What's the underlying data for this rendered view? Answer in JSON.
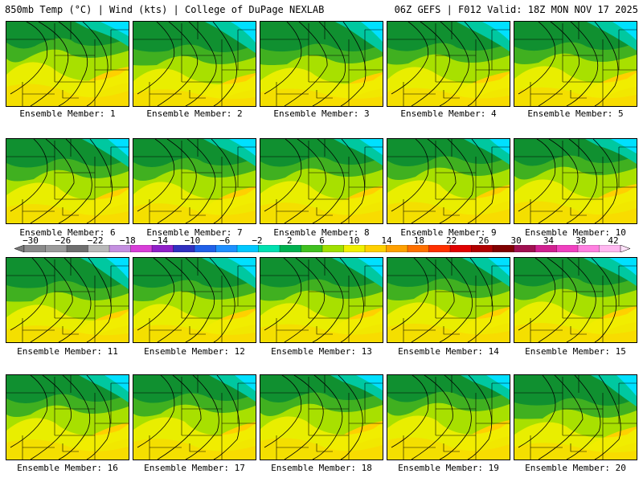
{
  "header": {
    "left_title": "850mb Temp (°C) | Wind (kts) | College of DuPage NEXLAB",
    "right_title": "06Z GEFS | F012 Valid: 18Z MON NOV 17 2025"
  },
  "members": [
    {
      "label": "Ensemble Member: 1"
    },
    {
      "label": "Ensemble Member: 2"
    },
    {
      "label": "Ensemble Member: 3"
    },
    {
      "label": "Ensemble Member: 4"
    },
    {
      "label": "Ensemble Member: 5"
    },
    {
      "label": "Ensemble Member: 6"
    },
    {
      "label": "Ensemble Member: 7"
    },
    {
      "label": "Ensemble Member: 8"
    },
    {
      "label": "Ensemble Member: 9"
    },
    {
      "label": "Ensemble Member: 10"
    },
    {
      "label": "Ensemble Member: 11"
    },
    {
      "label": "Ensemble Member: 12"
    },
    {
      "label": "Ensemble Member: 13"
    },
    {
      "label": "Ensemble Member: 14"
    },
    {
      "label": "Ensemble Member: 15"
    },
    {
      "label": "Ensemble Member: 16"
    },
    {
      "label": "Ensemble Member: 17"
    },
    {
      "label": "Ensemble Member: 18"
    },
    {
      "label": "Ensemble Member: 19"
    },
    {
      "label": "Ensemble Member: 20"
    }
  ],
  "colorbar": {
    "labels": [
      "−30",
      "−26",
      "−22",
      "−18",
      "−14",
      "−10",
      "−6",
      "−2",
      "2",
      "6",
      "10",
      "14",
      "18",
      "22",
      "26",
      "30",
      "34",
      "38",
      "42"
    ],
    "colors": [
      "#8a8a8a",
      "#9a9a9a",
      "#6e6e6e",
      "#b8b8b8",
      "#c490e0",
      "#d83ed8",
      "#9020c8",
      "#3030c0",
      "#2060e8",
      "#1e90ff",
      "#00c8ff",
      "#00e0b0",
      "#00b050",
      "#40c020",
      "#a0e000",
      "#f0f000",
      "#ffd000",
      "#ffa000",
      "#ff7000",
      "#ff3000",
      "#e00000",
      "#b00000",
      "#800000",
      "#a01050",
      "#d02090",
      "#f040c0",
      "#ff80e0",
      "#ffb8f0"
    ]
  },
  "palette": {
    "cyan": "#00e0ff",
    "teal": "#00c8a0",
    "dark_green": "#109030",
    "green": "#40b020",
    "lime": "#a8e000",
    "yellow": "#f0f000",
    "gold": "#ffd000",
    "orange": "#ffa000"
  }
}
